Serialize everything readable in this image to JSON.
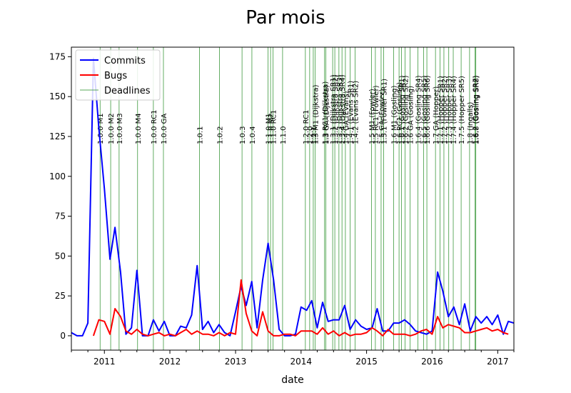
{
  "chart_data": {
    "type": "line",
    "title": "Par mois",
    "xlabel": "date",
    "ylabel": "",
    "xlim": [
      "2010-07-01",
      "2017-04-01"
    ],
    "ylim": [
      -9,
      181
    ],
    "x_ticks": [
      {
        "date": "2011-01-01",
        "label": "2011"
      },
      {
        "date": "2012-01-01",
        "label": "2012"
      },
      {
        "date": "2013-01-01",
        "label": "2013"
      },
      {
        "date": "2014-01-01",
        "label": "2014"
      },
      {
        "date": "2015-01-01",
        "label": "2015"
      },
      {
        "date": "2016-01-01",
        "label": "2016"
      },
      {
        "date": "2017-01-01",
        "label": "2017"
      }
    ],
    "y_ticks": [
      0,
      25,
      50,
      75,
      100,
      125,
      150,
      175
    ],
    "legend": {
      "position": "top-left",
      "entries": [
        "Commits",
        "Bugs",
        "Deadlines"
      ]
    },
    "series": [
      {
        "name": "Commits",
        "color": "#0000ff",
        "points": [
          [
            "2010-07-01",
            2
          ],
          [
            "2010-08-01",
            0
          ],
          [
            "2010-09-01",
            0
          ],
          [
            "2010-10-01",
            8
          ],
          [
            "2010-11-01",
            174
          ],
          [
            "2010-12-01",
            130
          ],
          [
            "2011-01-01",
            92
          ],
          [
            "2011-02-01",
            48
          ],
          [
            "2011-03-01",
            68
          ],
          [
            "2011-04-01",
            40
          ],
          [
            "2011-05-01",
            1
          ],
          [
            "2011-06-01",
            5
          ],
          [
            "2011-07-01",
            41
          ],
          [
            "2011-08-01",
            0
          ],
          [
            "2011-09-01",
            0
          ],
          [
            "2011-10-01",
            10
          ],
          [
            "2011-11-01",
            3
          ],
          [
            "2011-12-01",
            9
          ],
          [
            "2012-01-01",
            0
          ],
          [
            "2012-02-01",
            0
          ],
          [
            "2012-03-01",
            6
          ],
          [
            "2012-04-01",
            5
          ],
          [
            "2012-05-01",
            13
          ],
          [
            "2012-06-01",
            44
          ],
          [
            "2012-07-01",
            4
          ],
          [
            "2012-08-01",
            9
          ],
          [
            "2012-09-01",
            2
          ],
          [
            "2012-10-01",
            7
          ],
          [
            "2012-11-01",
            2
          ],
          [
            "2012-12-01",
            0
          ],
          [
            "2013-01-01",
            15
          ],
          [
            "2013-02-01",
            31
          ],
          [
            "2013-03-01",
            19
          ],
          [
            "2013-04-01",
            34
          ],
          [
            "2013-05-01",
            5
          ],
          [
            "2013-06-01",
            35
          ],
          [
            "2013-07-01",
            58
          ],
          [
            "2013-08-01",
            35
          ],
          [
            "2013-09-01",
            4
          ],
          [
            "2013-10-01",
            0
          ],
          [
            "2013-11-01",
            0
          ],
          [
            "2013-12-01",
            1
          ],
          [
            "2014-01-01",
            18
          ],
          [
            "2014-02-01",
            16
          ],
          [
            "2014-03-01",
            22
          ],
          [
            "2014-04-01",
            5
          ],
          [
            "2014-05-01",
            21
          ],
          [
            "2014-06-01",
            9
          ],
          [
            "2014-07-01",
            10
          ],
          [
            "2014-08-01",
            10
          ],
          [
            "2014-09-01",
            19
          ],
          [
            "2014-10-01",
            4
          ],
          [
            "2014-11-01",
            10
          ],
          [
            "2014-12-01",
            6
          ],
          [
            "2015-01-01",
            4
          ],
          [
            "2015-02-01",
            5
          ],
          [
            "2015-03-01",
            17
          ],
          [
            "2015-04-01",
            3
          ],
          [
            "2015-05-01",
            3
          ],
          [
            "2015-06-01",
            8
          ],
          [
            "2015-07-01",
            8
          ],
          [
            "2015-08-01",
            10
          ],
          [
            "2015-09-01",
            7
          ],
          [
            "2015-10-01",
            3
          ],
          [
            "2015-11-01",
            2
          ],
          [
            "2015-12-01",
            1
          ],
          [
            "2016-01-01",
            3
          ],
          [
            "2016-02-01",
            40
          ],
          [
            "2016-03-01",
            28
          ],
          [
            "2016-04-01",
            12
          ],
          [
            "2016-05-01",
            18
          ],
          [
            "2016-06-01",
            7
          ],
          [
            "2016-07-01",
            20
          ],
          [
            "2016-08-01",
            3
          ],
          [
            "2016-09-01",
            12
          ],
          [
            "2016-10-01",
            8
          ],
          [
            "2016-11-01",
            12
          ],
          [
            "2016-12-01",
            7
          ],
          [
            "2017-01-01",
            13
          ],
          [
            "2017-02-01",
            1
          ],
          [
            "2017-03-01",
            9
          ],
          [
            "2017-04-01",
            8
          ]
        ]
      },
      {
        "name": "Bugs",
        "color": "#ff0000",
        "points": [
          [
            "2010-11-01",
            0
          ],
          [
            "2010-12-01",
            10
          ],
          [
            "2011-01-01",
            9
          ],
          [
            "2011-02-01",
            1
          ],
          [
            "2011-03-01",
            17
          ],
          [
            "2011-04-01",
            12
          ],
          [
            "2011-05-01",
            3
          ],
          [
            "2011-06-01",
            1
          ],
          [
            "2011-07-01",
            4
          ],
          [
            "2011-08-01",
            1
          ],
          [
            "2011-09-01",
            0
          ],
          [
            "2011-10-01",
            1
          ],
          [
            "2011-11-01",
            2
          ],
          [
            "2011-12-01",
            0
          ],
          [
            "2012-01-01",
            1
          ],
          [
            "2012-02-01",
            0
          ],
          [
            "2012-03-01",
            2
          ],
          [
            "2012-04-01",
            4
          ],
          [
            "2012-05-01",
            1
          ],
          [
            "2012-06-01",
            3
          ],
          [
            "2012-07-01",
            1
          ],
          [
            "2012-08-01",
            1
          ],
          [
            "2012-09-01",
            0
          ],
          [
            "2012-10-01",
            2
          ],
          [
            "2012-11-01",
            0
          ],
          [
            "2012-12-01",
            2
          ],
          [
            "2013-01-01",
            1
          ],
          [
            "2013-02-01",
            35
          ],
          [
            "2013-03-01",
            14
          ],
          [
            "2013-04-01",
            3
          ],
          [
            "2013-05-01",
            0
          ],
          [
            "2013-06-01",
            15
          ],
          [
            "2013-07-01",
            3
          ],
          [
            "2013-08-01",
            0
          ],
          [
            "2013-09-01",
            0
          ],
          [
            "2013-10-01",
            1
          ],
          [
            "2013-11-01",
            1
          ],
          [
            "2013-12-01",
            0
          ],
          [
            "2014-01-01",
            3
          ],
          [
            "2014-02-01",
            3
          ],
          [
            "2014-03-01",
            3
          ],
          [
            "2014-04-01",
            1
          ],
          [
            "2014-05-01",
            5
          ],
          [
            "2014-06-01",
            1
          ],
          [
            "2014-07-01",
            3
          ],
          [
            "2014-08-01",
            0
          ],
          [
            "2014-09-01",
            2
          ],
          [
            "2014-10-01",
            0
          ],
          [
            "2014-11-01",
            1
          ],
          [
            "2014-12-01",
            1
          ],
          [
            "2015-01-01",
            2
          ],
          [
            "2015-02-01",
            5
          ],
          [
            "2015-03-01",
            3
          ],
          [
            "2015-04-01",
            0
          ],
          [
            "2015-05-01",
            4
          ],
          [
            "2015-06-01",
            1
          ],
          [
            "2015-07-01",
            1
          ],
          [
            "2015-08-01",
            1
          ],
          [
            "2015-09-01",
            0
          ],
          [
            "2015-10-01",
            1
          ],
          [
            "2015-11-01",
            3
          ],
          [
            "2015-12-01",
            4
          ],
          [
            "2016-01-01",
            1
          ],
          [
            "2016-02-01",
            12
          ],
          [
            "2016-03-01",
            5
          ],
          [
            "2016-04-01",
            7
          ],
          [
            "2016-05-01",
            6
          ],
          [
            "2016-06-01",
            5
          ],
          [
            "2016-07-01",
            2
          ],
          [
            "2016-08-01",
            2
          ],
          [
            "2016-09-01",
            3
          ],
          [
            "2016-10-01",
            4
          ],
          [
            "2016-11-01",
            5
          ],
          [
            "2016-12-01",
            3
          ],
          [
            "2017-01-01",
            4
          ],
          [
            "2017-02-01",
            2
          ],
          [
            "2017-03-01",
            1
          ]
        ]
      }
    ],
    "deadlines": {
      "name": "Deadlines",
      "color": "#228b22",
      "items": [
        {
          "date": "2010-12-08",
          "label": "1.0.0 M1"
        },
        {
          "date": "2011-02-05",
          "label": "1.0.0 M2"
        },
        {
          "date": "2011-03-24",
          "label": "1.0.0 M3"
        },
        {
          "date": "2011-07-05",
          "label": "1.0.0 M4"
        },
        {
          "date": "2011-10-01",
          "label": "1.0.0 RC1"
        },
        {
          "date": "2011-11-26",
          "label": "1.0.0 GA"
        },
        {
          "date": "2012-06-14",
          "label": "1.0.1"
        },
        {
          "date": "2012-10-03",
          "label": "1.0.2"
        },
        {
          "date": "2013-02-06",
          "label": "1.0.3"
        },
        {
          "date": "2013-04-02",
          "label": "1.0.4"
        },
        {
          "date": "2013-07-01",
          "label": "1.1.0 M1"
        },
        {
          "date": "2013-07-15",
          "label": "1.1.0 M2"
        },
        {
          "date": "2013-07-29",
          "label": "1.1.0 RC1"
        },
        {
          "date": "2013-09-20",
          "label": "1.1.0"
        },
        {
          "date": "2014-01-25",
          "label": "1.2.0 RC1"
        },
        {
          "date": "2014-02-18",
          "label": "1.2.0"
        },
        {
          "date": "2014-03-10",
          "label": "1.2.1"
        },
        {
          "date": "2014-03-20",
          "label": "1.3 M1 (Dijkstra)"
        },
        {
          "date": "2014-05-12",
          "label": "1.3 RC1 (Dijkstra)"
        },
        {
          "date": "2014-05-19",
          "label": "1.3 GA (Dijkstra)"
        },
        {
          "date": "2014-06-26",
          "label": "1.3.1 (Dijkstra SR1)"
        },
        {
          "date": "2014-07-08",
          "label": "1.3.2 (Dijkstra SR2)"
        },
        {
          "date": "2014-07-31",
          "label": "1.3.3 (Dijkstra SR3)"
        },
        {
          "date": "2014-08-17",
          "label": "1.3.4 (Dijkstra SR4)"
        },
        {
          "date": "2014-09-05",
          "label": "1.4 GA (Evans)"
        },
        {
          "date": "2014-10-02",
          "label": "1.4.1 (Evans SR1)"
        },
        {
          "date": "2014-10-29",
          "label": "1.4.2 (Evans SR2)"
        },
        {
          "date": "2015-01-28",
          "label": "1.5 M1 (Fowler)"
        },
        {
          "date": "2015-02-19",
          "label": "1.5 RC1 (Fowler)"
        },
        {
          "date": "2015-03-23",
          "label": "1.5 GA (Fowler)"
        },
        {
          "date": "2015-04-06",
          "label": "1.5.1 (Fowler SR1)"
        },
        {
          "date": "2015-06-01",
          "label": "1.6 M1 (Gosling)"
        },
        {
          "date": "2015-07-01",
          "label": "1.6 RC1 (Gosling)"
        },
        {
          "date": "2015-07-15",
          "label": "1.6.1 (Gosling SR1)"
        },
        {
          "date": "2015-08-04",
          "label": "1.6.2 (Gosling SR2)"
        },
        {
          "date": "2015-09-01",
          "label": "1.6 GA (Gosling)"
        },
        {
          "date": "2015-10-14",
          "label": "1.6.4 (Gosling SR4)"
        },
        {
          "date": "2015-11-15",
          "label": "1.6.5 (Gosling SR5)"
        },
        {
          "date": "2015-12-03",
          "label": "1.6.6 (Gosling SR6)"
        },
        {
          "date": "2016-01-20",
          "label": "1.7 GA (Hopper)"
        },
        {
          "date": "2016-02-14",
          "label": "1.7.1 (Hopper SR1)"
        },
        {
          "date": "2016-03-07",
          "label": "1.7.2 (Hopper SR2)"
        },
        {
          "date": "2016-04-03",
          "label": "1.7.3 (Hopper SR3)"
        },
        {
          "date": "2016-04-28",
          "label": "1.7.4 (Hopper SR4)"
        },
        {
          "date": "2016-06-11",
          "label": "1.7.5 (Hopper SR5)"
        },
        {
          "date": "2016-07-28",
          "label": "1.8 (Ingalls)"
        },
        {
          "date": "2016-08-28",
          "label": "1.6.7 (Gosling SR7)"
        },
        {
          "date": "2016-09-01",
          "label": "1.6.8 (Gosling SR8)"
        }
      ]
    }
  }
}
